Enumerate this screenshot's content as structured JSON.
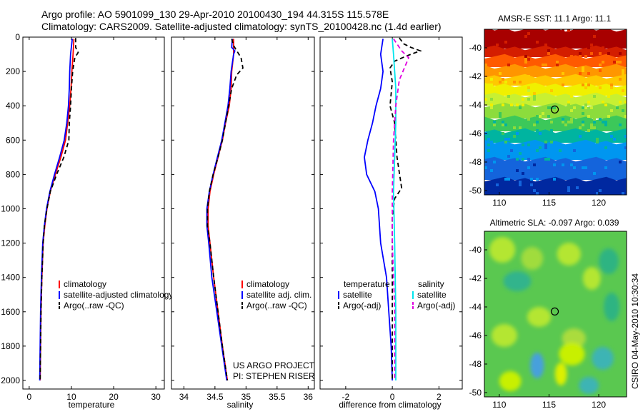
{
  "header": {
    "title_line1": "Argo profile: AO 5901099_130 29-Apr-2010 20100430_194 44.315S 115.578E",
    "title_line2": "Climatology: CARS2009. Satellite-adjusted climatology: synTS_20100428.nc (1.4d earlier)"
  },
  "side_note": "CSIRO 04-May-2010 10:30:34",
  "project_note": {
    "line1": "US ARGO PROJECT",
    "line2": "PI: STEPHEN RISER"
  },
  "colors": {
    "climatology": "#ff0000",
    "satellite": "#0000ff",
    "argo": "#000000",
    "sal_satellite": "#00e5ee",
    "sal_argo": "#e000e0"
  },
  "chart_data": [
    {
      "type": "line",
      "xlabel": "temperature",
      "ylabel": "",
      "xlim": [
        -1.5,
        32
      ],
      "ylim": [
        2050,
        0
      ],
      "xticks": [
        0,
        10,
        20,
        30
      ],
      "yticks": [
        0,
        200,
        400,
        600,
        800,
        1000,
        1200,
        1400,
        1600,
        1800,
        2000
      ],
      "legend_position": "lower-center",
      "legend": [
        {
          "label": "climatology",
          "color": "#ff0000",
          "dash": "solid"
        },
        {
          "label": "satellite-adjusted climatology",
          "color": "#0000ff",
          "dash": "solid"
        },
        {
          "label": "Argo(..raw -QC)",
          "color": "#000000",
          "dash": "dashed"
        }
      ],
      "series": [
        {
          "color": "#ff0000",
          "dash": "solid",
          "points": [
            [
              10.6,
              10
            ],
            [
              10.4,
              100
            ],
            [
              10.1,
              200
            ],
            [
              9.9,
              300
            ],
            [
              9.6,
              400
            ],
            [
              9.1,
              500
            ],
            [
              8.6,
              600
            ],
            [
              7.5,
              700
            ],
            [
              6.2,
              800
            ],
            [
              5.0,
              900
            ],
            [
              4.2,
              1000
            ],
            [
              3.7,
              1100
            ],
            [
              3.3,
              1200
            ],
            [
              3.0,
              1400
            ],
            [
              2.8,
              1600
            ],
            [
              2.7,
              1800
            ],
            [
              2.6,
              2000
            ]
          ]
        },
        {
          "color": "#0000ff",
          "dash": "solid",
          "points": [
            [
              10.2,
              10
            ],
            [
              9.8,
              100
            ],
            [
              9.6,
              200
            ],
            [
              9.5,
              300
            ],
            [
              9.3,
              400
            ],
            [
              8.9,
              500
            ],
            [
              8.3,
              600
            ],
            [
              7.2,
              700
            ],
            [
              6.0,
              800
            ],
            [
              4.9,
              900
            ],
            [
              4.1,
              1000
            ],
            [
              3.6,
              1100
            ],
            [
              3.2,
              1200
            ],
            [
              2.9,
              1400
            ],
            [
              2.7,
              1600
            ],
            [
              2.6,
              1800
            ],
            [
              2.5,
              2000
            ]
          ]
        },
        {
          "color": "#000000",
          "dash": "dashed",
          "points": [
            [
              11.0,
              5
            ],
            [
              11.0,
              60
            ],
            [
              11.6,
              90
            ],
            [
              10.8,
              120
            ],
            [
              10.3,
              200
            ],
            [
              10.0,
              300
            ],
            [
              9.8,
              400
            ],
            [
              9.5,
              500
            ],
            [
              9.4,
              600
            ],
            [
              8.2,
              700
            ],
            [
              6.5,
              800
            ],
            [
              5.0,
              900
            ],
            [
              4.2,
              1000
            ],
            [
              3.6,
              1100
            ],
            [
              3.3,
              1200
            ],
            [
              3.0,
              1400
            ],
            [
              2.8,
              1600
            ],
            [
              2.7,
              1800
            ],
            [
              2.6,
              2000
            ]
          ]
        }
      ]
    },
    {
      "type": "line",
      "xlabel": "salinity",
      "ylabel": "",
      "xlim": [
        33.8,
        36.1
      ],
      "ylim": [
        2050,
        0
      ],
      "xticks": [
        34,
        34.5,
        35,
        35.5,
        36
      ],
      "yticks": [
        0,
        200,
        400,
        600,
        800,
        1000,
        1200,
        1400,
        1600,
        1800,
        2000
      ],
      "legend_position": "lower-center",
      "legend": [
        {
          "label": "climatology",
          "color": "#ff0000",
          "dash": "solid"
        },
        {
          "label": "satellite adj. clim.",
          "color": "#0000ff",
          "dash": "solid"
        },
        {
          "label": "Argo(..raw -QC)",
          "color": "#000000",
          "dash": "dashed"
        }
      ],
      "series": [
        {
          "color": "#ff0000",
          "dash": "solid",
          "points": [
            [
              34.8,
              10
            ],
            [
              34.8,
              100
            ],
            [
              34.77,
              200
            ],
            [
              34.76,
              300
            ],
            [
              34.73,
              400
            ],
            [
              34.67,
              500
            ],
            [
              34.62,
              600
            ],
            [
              34.55,
              700
            ],
            [
              34.48,
              800
            ],
            [
              34.42,
              900
            ],
            [
              34.39,
              1000
            ],
            [
              34.39,
              1100
            ],
            [
              34.42,
              1200
            ],
            [
              34.48,
              1400
            ],
            [
              34.55,
              1600
            ],
            [
              34.62,
              1800
            ],
            [
              34.7,
              2000
            ]
          ]
        },
        {
          "color": "#0000ff",
          "dash": "solid",
          "points": [
            [
              34.78,
              10
            ],
            [
              34.77,
              60
            ],
            [
              34.82,
              80
            ],
            [
              34.8,
              100
            ],
            [
              34.76,
              200
            ],
            [
              34.74,
              300
            ],
            [
              34.71,
              400
            ],
            [
              34.66,
              500
            ],
            [
              34.61,
              600
            ],
            [
              34.54,
              700
            ],
            [
              34.47,
              800
            ],
            [
              34.41,
              900
            ],
            [
              34.37,
              1000
            ],
            [
              34.37,
              1100
            ],
            [
              34.4,
              1200
            ],
            [
              34.45,
              1400
            ],
            [
              34.53,
              1600
            ],
            [
              34.61,
              1800
            ],
            [
              34.69,
              2000
            ]
          ]
        },
        {
          "color": "#000000",
          "dash": "dashed",
          "points": [
            [
              34.77,
              10
            ],
            [
              34.8,
              50
            ],
            [
              34.92,
              120
            ],
            [
              34.95,
              180
            ],
            [
              34.85,
              220
            ],
            [
              34.77,
              300
            ],
            [
              34.72,
              400
            ],
            [
              34.67,
              500
            ],
            [
              34.62,
              600
            ],
            [
              34.55,
              700
            ],
            [
              34.47,
              800
            ],
            [
              34.41,
              900
            ],
            [
              34.38,
              1000
            ],
            [
              34.38,
              1100
            ],
            [
              34.42,
              1200
            ],
            [
              34.48,
              1400
            ],
            [
              34.55,
              1600
            ],
            [
              34.62,
              1800
            ],
            [
              34.7,
              2000
            ]
          ]
        }
      ]
    },
    {
      "type": "line",
      "xlabel": "difference from climatology",
      "ylabel": "",
      "xlim": [
        -3.1,
        3.0
      ],
      "ylim": [
        2050,
        0
      ],
      "xticks": [
        -2,
        0,
        2
      ],
      "yticks": [
        0,
        200,
        400,
        600,
        800,
        1000,
        1200,
        1400,
        1600,
        1800,
        2000
      ],
      "legend_position": "lower-center",
      "legend_groups": [
        {
          "header": "temperature",
          "entries": [
            {
              "label": "satellite",
              "color": "#0000ff",
              "dash": "solid"
            },
            {
              "label": "Argo(-adj)",
              "color": "#000000",
              "dash": "dashed"
            }
          ]
        },
        {
          "header": "salinity",
          "entries": [
            {
              "label": "satellite",
              "color": "#00e5ee",
              "dash": "solid"
            },
            {
              "label": "Argo(-adj)",
              "color": "#e000e0",
              "dash": "dashed"
            }
          ]
        }
      ],
      "series": [
        {
          "color": "#0000ff",
          "dash": "solid",
          "points": [
            [
              -0.4,
              10
            ],
            [
              -0.5,
              100
            ],
            [
              -0.4,
              200
            ],
            [
              -0.5,
              300
            ],
            [
              -0.7,
              400
            ],
            [
              -0.85,
              500
            ],
            [
              -1.05,
              600
            ],
            [
              -1.2,
              700
            ],
            [
              -1.1,
              800
            ],
            [
              -0.75,
              900
            ],
            [
              -0.6,
              1000
            ],
            [
              -0.5,
              1200
            ],
            [
              -0.25,
              1400
            ],
            [
              -0.15,
              1600
            ],
            [
              -0.05,
              1800
            ],
            [
              0.0,
              2000
            ]
          ]
        },
        {
          "color": "#000000",
          "dash": "dashed",
          "points": [
            [
              0.3,
              5
            ],
            [
              0.5,
              40
            ],
            [
              0.8,
              60
            ],
            [
              1.2,
              80
            ],
            [
              0.6,
              110
            ],
            [
              0.1,
              140
            ],
            [
              -0.1,
              180
            ],
            [
              0.0,
              260
            ],
            [
              -0.1,
              400
            ],
            [
              0.1,
              500
            ],
            [
              0.2,
              700
            ],
            [
              0.4,
              880
            ],
            [
              0.1,
              940
            ],
            [
              0.0,
              1050
            ],
            [
              0.0,
              2000
            ]
          ]
        },
        {
          "color": "#00e5ee",
          "dash": "solid",
          "points": [
            [
              0.0,
              10
            ],
            [
              0.05,
              100
            ],
            [
              0.1,
              200
            ],
            [
              0.15,
              300
            ],
            [
              0.15,
              500
            ],
            [
              0.1,
              700
            ],
            [
              0.05,
              900
            ],
            [
              0.1,
              1200
            ],
            [
              0.15,
              1600
            ],
            [
              0.15,
              2000
            ]
          ]
        },
        {
          "color": "#e000e0",
          "dash": "dashed",
          "points": [
            [
              0.05,
              10
            ],
            [
              0.4,
              80
            ],
            [
              0.7,
              120
            ],
            [
              0.3,
              250
            ],
            [
              0.15,
              400
            ],
            [
              0.05,
              600
            ],
            [
              0.0,
              900
            ],
            [
              0.0,
              1200
            ],
            [
              0.1,
              1600
            ],
            [
              0.1,
              2000
            ]
          ]
        }
      ]
    },
    {
      "type": "heatmap",
      "title": "AMSR-E SST: 11.1  Argo: 11.1",
      "xlim": [
        108.5,
        122.8
      ],
      "ylim": [
        -50.3,
        -38.7
      ],
      "xticks": [
        110,
        115,
        120
      ],
      "yticks": [
        -40,
        -42,
        -44,
        -46,
        -48,
        -50
      ],
      "marker": {
        "x": 115.58,
        "y": -44.32
      },
      "bands": [
        {
          "y0": -38.7,
          "y1": -40.0,
          "color": "#a80000"
        },
        {
          "y0": -40.0,
          "y1": -40.6,
          "color": "#d41e00"
        },
        {
          "y0": -40.6,
          "y1": -41.3,
          "color": "#ff5a00"
        },
        {
          "y0": -41.3,
          "y1": -42.0,
          "color": "#ff9600"
        },
        {
          "y0": -42.0,
          "y1": -42.6,
          "color": "#ffc800"
        },
        {
          "y0": -42.6,
          "y1": -43.3,
          "color": "#f0f000"
        },
        {
          "y0": -43.3,
          "y1": -44.0,
          "color": "#c8f032"
        },
        {
          "y0": -44.0,
          "y1": -44.9,
          "color": "#8cdc3c"
        },
        {
          "y0": -44.9,
          "y1": -45.8,
          "color": "#3cc85a"
        },
        {
          "y0": -45.8,
          "y1": -46.6,
          "color": "#00b4a0"
        },
        {
          "y0": -46.6,
          "y1": -47.8,
          "color": "#0096f0"
        },
        {
          "y0": -47.8,
          "y1": -49.2,
          "color": "#1464dc"
        },
        {
          "y0": -49.2,
          "y1": -50.3,
          "color": "#0028a0"
        }
      ]
    },
    {
      "type": "heatmap",
      "title": "Altimetric SLA: -0.097  Argo: 0.039",
      "xlim": [
        108.5,
        122.8
      ],
      "ylim": [
        -50.3,
        -38.7
      ],
      "xticks": [
        110,
        115,
        120
      ],
      "yticks": [
        -40,
        -42,
        -44,
        -46,
        -48,
        -50
      ],
      "marker": {
        "x": 115.58,
        "y": -44.32
      },
      "background_color": "#5ac850",
      "blobs": [
        {
          "x": 110.3,
          "y": -40.0,
          "rx": 1.3,
          "ry": 0.9,
          "color": "#b4e632"
        },
        {
          "x": 113.3,
          "y": -40.6,
          "rx": 1.1,
          "ry": 0.8,
          "color": "#a0dc3c"
        },
        {
          "x": 117.0,
          "y": -40.3,
          "rx": 1.2,
          "ry": 0.8,
          "color": "#b4e632"
        },
        {
          "x": 121.0,
          "y": -40.8,
          "rx": 1.0,
          "ry": 0.9,
          "color": "#2db482"
        },
        {
          "x": 111.8,
          "y": -42.2,
          "rx": 1.4,
          "ry": 0.7,
          "color": "#32b48c"
        },
        {
          "x": 119.3,
          "y": -42.0,
          "rx": 0.9,
          "ry": 0.8,
          "color": "#b4e632"
        },
        {
          "x": 114.0,
          "y": -44.7,
          "rx": 1.2,
          "ry": 0.7,
          "color": "#b4e632"
        },
        {
          "x": 121.3,
          "y": -44.0,
          "rx": 0.8,
          "ry": 1.0,
          "color": "#2db482"
        },
        {
          "x": 110.5,
          "y": -46.0,
          "rx": 1.3,
          "ry": 0.8,
          "color": "#b4e632"
        },
        {
          "x": 117.5,
          "y": -46.2,
          "rx": 1.2,
          "ry": 0.7,
          "color": "#aadc3c"
        },
        {
          "x": 117.3,
          "y": -47.3,
          "rx": 1.3,
          "ry": 0.8,
          "color": "#c8f000"
        },
        {
          "x": 113.8,
          "y": -48.1,
          "rx": 0.7,
          "ry": 0.9,
          "color": "#46a0dc"
        },
        {
          "x": 116.2,
          "y": -48.7,
          "rx": 0.6,
          "ry": 0.8,
          "color": "#dcf000"
        },
        {
          "x": 120.4,
          "y": -47.6,
          "rx": 1.1,
          "ry": 0.8,
          "color": "#3cb4b4"
        },
        {
          "x": 111.1,
          "y": -49.2,
          "rx": 1.1,
          "ry": 0.7,
          "color": "#c8f000"
        },
        {
          "x": 119.0,
          "y": -49.5,
          "rx": 1.0,
          "ry": 0.6,
          "color": "#3cb4b4"
        }
      ]
    }
  ]
}
